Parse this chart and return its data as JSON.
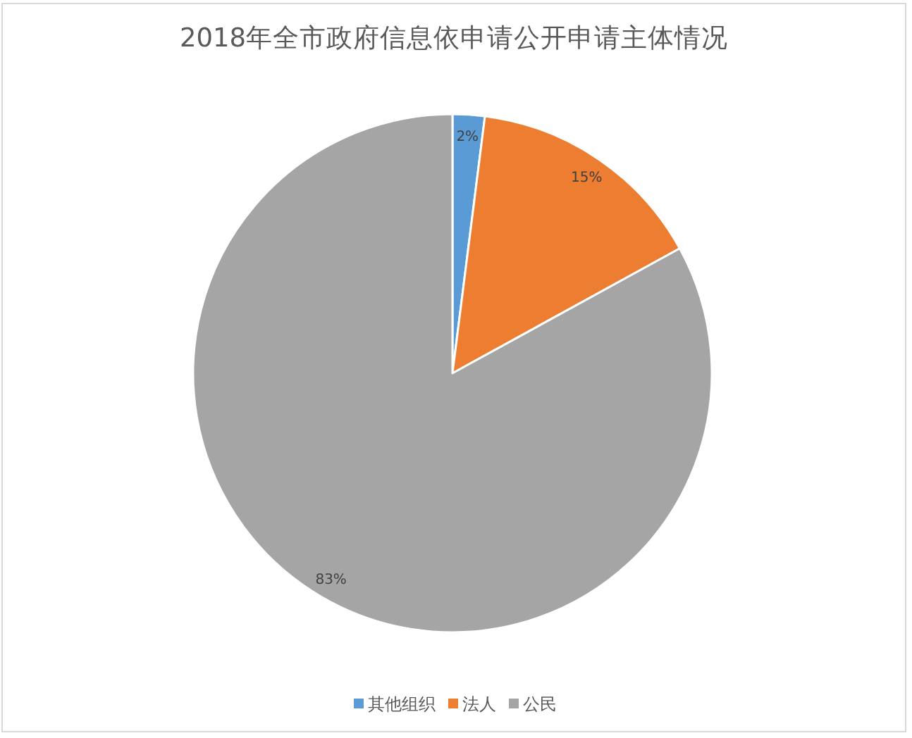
{
  "chart_data": {
    "type": "pie",
    "title": "2018年全市政府信息依申请公开申请主体情况",
    "categories": [
      "其他组织",
      "法人",
      "公民"
    ],
    "values": [
      2,
      15,
      83
    ],
    "value_labels": [
      "2%",
      "15%",
      "83%"
    ],
    "colors": [
      "#5b9bd5",
      "#ed7d31",
      "#a5a5a5"
    ],
    "legend": "bottom"
  }
}
